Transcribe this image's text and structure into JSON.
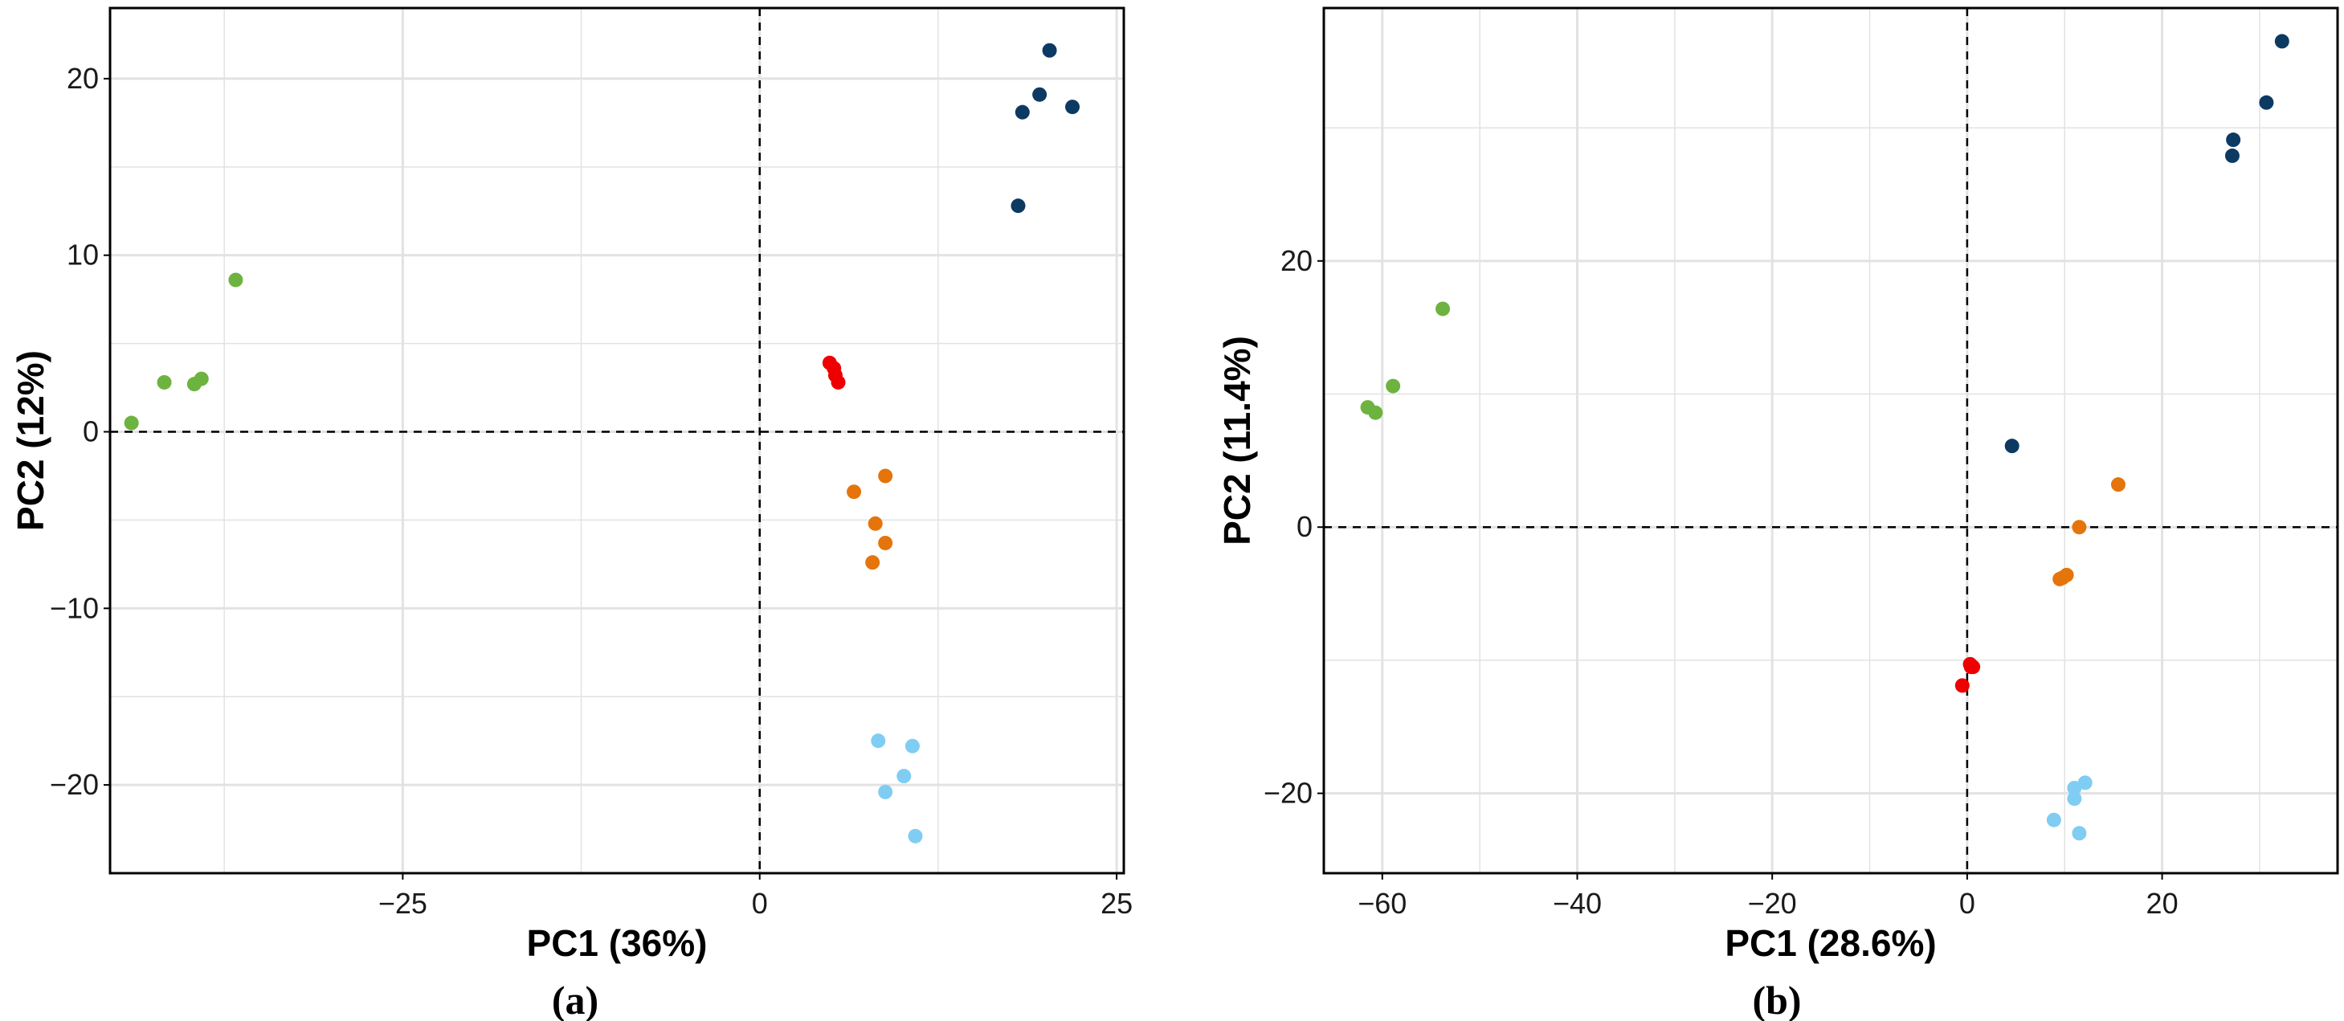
{
  "colors": {
    "green": "#6db33f",
    "navy": "#0d3a63",
    "red": "#ee0000",
    "orange": "#e5740b",
    "lightblue": "#7fcdf2",
    "grid": "#e2e2e2",
    "frame": "#000000"
  },
  "chart_data": [
    {
      "type": "scatter",
      "panel_label": "(a)",
      "xlabel": "PC1 (36%)",
      "ylabel": "PC2 (12%)",
      "xlim": [
        -45.5,
        25.5
      ],
      "ylim": [
        -25,
        24
      ],
      "xticks": [
        -25,
        0,
        25
      ],
      "xtick_labels": [
        "−25",
        "0",
        "25"
      ],
      "yticks": [
        -20,
        -10,
        0,
        10,
        20
      ],
      "ytick_labels": [
        "−20",
        "−10",
        "0",
        "10",
        "20"
      ],
      "grid": true,
      "reference_lines": {
        "x": 0,
        "y": 0
      },
      "series": [
        {
          "name": "green",
          "color_key": "green",
          "points": [
            [
              -44,
              0.5
            ],
            [
              -41.7,
              2.8
            ],
            [
              -39.6,
              2.7
            ],
            [
              -39.1,
              3.0
            ],
            [
              -36.7,
              8.6
            ]
          ]
        },
        {
          "name": "navy",
          "color_key": "navy",
          "points": [
            [
              20.3,
              21.6
            ],
            [
              19.6,
              19.1
            ],
            [
              21.9,
              18.4
            ],
            [
              18.4,
              18.1
            ],
            [
              18.1,
              12.8
            ]
          ]
        },
        {
          "name": "red",
          "color_key": "red",
          "points": [
            [
              4.9,
              3.9
            ],
            [
              5.2,
              3.6
            ],
            [
              5.3,
              3.2
            ],
            [
              5.5,
              2.8
            ]
          ]
        },
        {
          "name": "orange",
          "color_key": "orange",
          "points": [
            [
              8.8,
              -2.5
            ],
            [
              6.6,
              -3.4
            ],
            [
              8.1,
              -5.2
            ],
            [
              8.8,
              -6.3
            ],
            [
              7.9,
              -7.4
            ]
          ]
        },
        {
          "name": "lightblue",
          "color_key": "lightblue",
          "points": [
            [
              8.3,
              -17.5
            ],
            [
              10.7,
              -17.8
            ],
            [
              10.1,
              -19.5
            ],
            [
              8.8,
              -20.4
            ],
            [
              10.9,
              -22.9
            ]
          ]
        }
      ]
    },
    {
      "type": "scatter",
      "panel_label": "(b)",
      "xlabel": "PC1 (28.6%)",
      "ylabel": "PC2 (11.4%)",
      "xlim": [
        -66,
        38
      ],
      "ylim": [
        -26,
        39
      ],
      "xticks": [
        -60,
        -40,
        -20,
        0,
        20
      ],
      "xtick_labels": [
        "−60",
        "−40",
        "−20",
        "0",
        "20"
      ],
      "yticks": [
        -20,
        0,
        20
      ],
      "ytick_labels": [
        "−20",
        "0",
        "20"
      ],
      "grid": true,
      "reference_lines": {
        "x": 0,
        "y": 0
      },
      "series": [
        {
          "name": "green",
          "color_key": "green",
          "points": [
            [
              -61.5,
              9.0
            ],
            [
              -60.7,
              8.6
            ],
            [
              -58.9,
              10.6
            ],
            [
              -53.8,
              16.4
            ]
          ]
        },
        {
          "name": "navy",
          "color_key": "navy",
          "points": [
            [
              32.3,
              36.5
            ],
            [
              30.7,
              31.9
            ],
            [
              27.3,
              29.1
            ],
            [
              27.2,
              27.9
            ],
            [
              4.6,
              6.1
            ]
          ]
        },
        {
          "name": "red",
          "color_key": "red",
          "points": [
            [
              0.3,
              -10.3
            ],
            [
              0.4,
              -10.5
            ],
            [
              0.6,
              -10.5
            ],
            [
              -0.5,
              -11.9
            ]
          ]
        },
        {
          "name": "orange",
          "color_key": "orange",
          "points": [
            [
              15.5,
              3.2
            ],
            [
              11.5,
              0.0
            ],
            [
              10.2,
              -3.6
            ],
            [
              9.8,
              -3.8
            ],
            [
              9.5,
              -3.9
            ]
          ]
        },
        {
          "name": "lightblue",
          "color_key": "lightblue",
          "points": [
            [
              12.1,
              -19.2
            ],
            [
              11.0,
              -19.6
            ],
            [
              11.0,
              -20.4
            ],
            [
              8.9,
              -22.0
            ],
            [
              11.5,
              -23.0
            ]
          ]
        }
      ]
    }
  ]
}
